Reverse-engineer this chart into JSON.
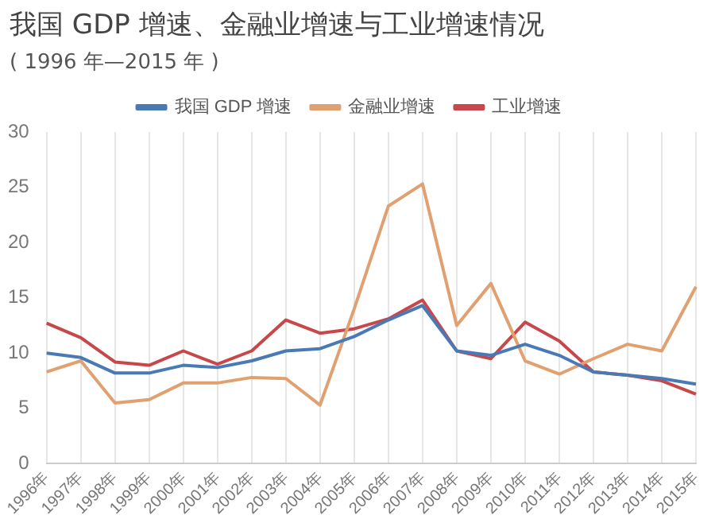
{
  "chart_data": {
    "type": "line",
    "title": "我国 GDP 增速、金融业增速与工业增速情况",
    "subtitle": "( 1996 年—2015 年 )",
    "categories": [
      "1996年",
      "1997年",
      "1998年",
      "1999年",
      "2000年",
      "2001年",
      "2002年",
      "2003年",
      "2004年",
      "2005年",
      "2006年",
      "2007年",
      "2008年",
      "2009年",
      "2010年",
      "2011年",
      "2012年",
      "2013年",
      "2014年",
      "2015年"
    ],
    "series": [
      {
        "name": "我国 GDP 增速",
        "color": "#4a7ab5",
        "values": [
          10.0,
          9.6,
          8.2,
          8.2,
          8.9,
          8.7,
          9.3,
          10.2,
          10.4,
          11.5,
          13.0,
          14.3,
          10.2,
          9.8,
          10.8,
          9.8,
          8.3,
          8.0,
          7.7,
          7.2
        ]
      },
      {
        "name": "金融业增速",
        "color": "#e0a070",
        "values": [
          8.3,
          9.3,
          5.5,
          5.8,
          7.3,
          7.3,
          7.8,
          7.7,
          5.3,
          14.0,
          23.3,
          25.3,
          12.5,
          16.3,
          9.3,
          8.1,
          9.5,
          10.8,
          10.2,
          16.0
        ]
      },
      {
        "name": "工业增速",
        "color": "#c8474a",
        "values": [
          12.7,
          11.4,
          9.2,
          8.9,
          10.2,
          9.0,
          10.2,
          13.0,
          11.8,
          12.2,
          13.1,
          14.8,
          10.2,
          9.5,
          12.8,
          11.1,
          8.3,
          8.0,
          7.5,
          6.3
        ]
      }
    ],
    "ylim": [
      0,
      30
    ],
    "yticks": [
      0,
      5,
      10,
      15,
      20,
      25,
      30
    ],
    "grid": "x",
    "legend": "top",
    "marker": "none"
  }
}
